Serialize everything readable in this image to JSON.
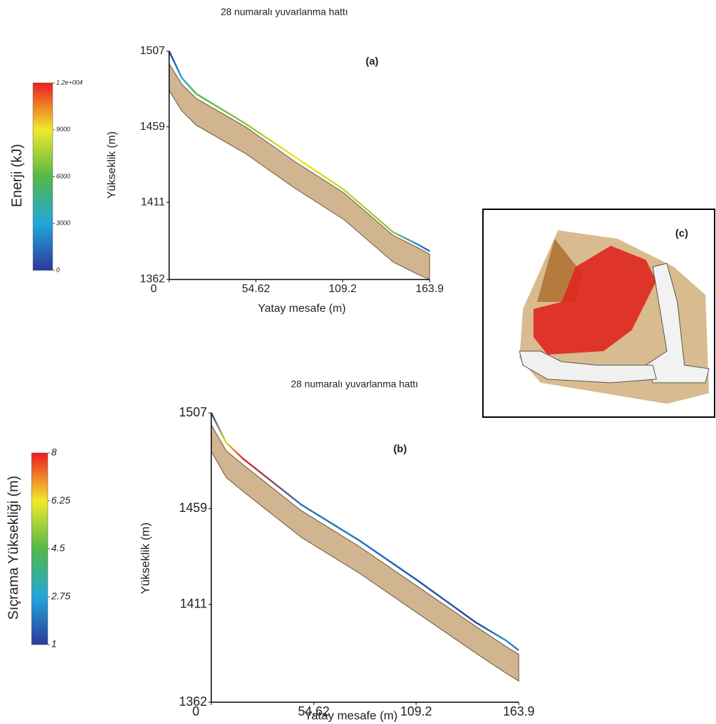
{
  "chart_data": [
    {
      "type": "line",
      "title": "28 numaralı yuvarlanma hattı",
      "panel_label": "(a)",
      "xlabel": "Yatay mesafe (m)",
      "ylabel": "Yükseklik (m)",
      "x": [
        0,
        8,
        17,
        48,
        79,
        110,
        141,
        157,
        163.9
      ],
      "series": [
        {
          "color": "#c9a77c",
          "values": [
            1499,
            1486,
            1477,
            1459,
            1437,
            1417,
            1390,
            1382,
            1378
          ]
        },
        {
          "values": [
            1507,
            1490,
            1480,
            1461,
            1440,
            1419,
            1392,
            1384,
            1380
          ],
          "color_values": [
            0,
            3000,
            6000,
            7000,
            9000,
            8000,
            7000,
            2000,
            1000
          ]
        }
      ],
      "xlim": [
        0,
        163.9
      ],
      "xticks": [
        0,
        54.62,
        109.2,
        163.9
      ],
      "ylim": [
        1362,
        1507
      ],
      "yticks": [
        1362,
        1411,
        1459,
        1507
      ],
      "colorbar": {
        "label": "Enerji (kJ)",
        "lim": [
          0,
          12000
        ],
        "ticks": [
          0,
          3000,
          6000,
          9000,
          {
            "value": 12000,
            "label": "1.2e+004"
          }
        ],
        "colors": [
          "#2b3a9b",
          "#22a7dc",
          "#54b847",
          "#f2e92a",
          "#ed1c24"
        ]
      }
    },
    {
      "type": "line",
      "title": "28 numaralı yuvarlanma hattı",
      "panel_label": "(b)",
      "xlabel": "Yatay mesafe (m)",
      "ylabel": "Yükseklik (m)",
      "x": [
        0,
        8,
        17,
        48,
        79,
        110,
        141,
        157,
        163.9
      ],
      "series": [
        {
          "color": "#c9a77c",
          "values": [
            1501,
            1488,
            1481,
            1458,
            1440,
            1420,
            1400,
            1390,
            1386
          ]
        },
        {
          "values": [
            1507,
            1492,
            1484,
            1461,
            1443,
            1423,
            1402,
            1393,
            1388
          ],
          "color_values": [
            1,
            6,
            8,
            2,
            2,
            1.5,
            1.2,
            2.5,
            2
          ]
        }
      ],
      "xlim": [
        0,
        163.9
      ],
      "xticks": [
        0,
        54.62,
        109.2,
        163.9
      ],
      "ylim": [
        1362,
        1507
      ],
      "yticks": [
        1362,
        1411,
        1459,
        1507
      ],
      "colorbar": {
        "label": "Sıçrama Yüksekliği (m)",
        "lim": [
          1,
          8
        ],
        "ticks": [
          1,
          2.75,
          4.5,
          6.25,
          8
        ],
        "colors": [
          "#2b3a9b",
          "#22a7dc",
          "#54b847",
          "#f2e92a",
          "#ed1c24"
        ]
      }
    }
  ],
  "inset": {
    "panel_label": "(c)"
  }
}
